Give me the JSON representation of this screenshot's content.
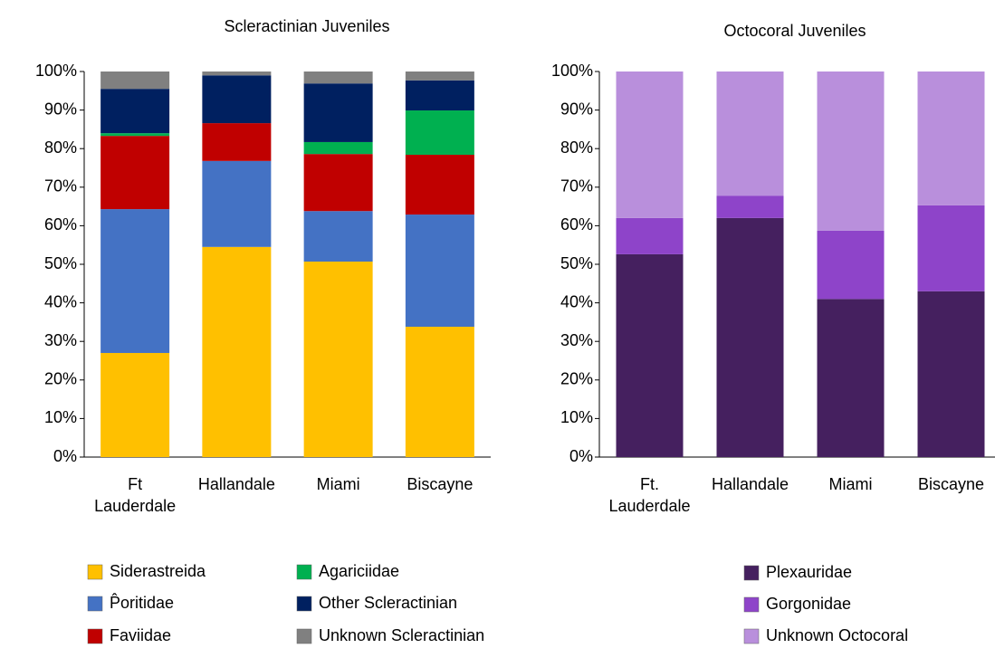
{
  "chart_data": [
    {
      "type": "bar",
      "stacked": true,
      "title": "Scleractinian Juveniles",
      "categories": [
        "Ft Lauderdale",
        "Hallandale",
        "Miami",
        "Biscayne"
      ],
      "series": [
        {
          "name": "Siderastreida",
          "color": "#ffc000",
          "values": [
            27,
            54.5,
            50.7,
            33.8
          ]
        },
        {
          "name": "P̂oritidae",
          "color": "#4472c4",
          "values": [
            37.3,
            22.3,
            13.1,
            29.1
          ]
        },
        {
          "name": "Faviidae",
          "color": "#c00000",
          "values": [
            19,
            9.8,
            14.8,
            15.5
          ]
        },
        {
          "name": "Agariciidae",
          "color": "#00b050",
          "values": [
            0.7,
            0,
            3.1,
            11.5
          ]
        },
        {
          "name": "Other Scleractinian",
          "color": "#002060",
          "values": [
            11.5,
            12.4,
            15.2,
            7.8
          ]
        },
        {
          "name": "Unknown Scleractinian",
          "color": "#808080",
          "values": [
            4.5,
            1,
            3.1,
            2.3
          ]
        }
      ],
      "ylim": [
        0,
        100
      ],
      "yticks": [
        {
          "value": 0,
          "label": "0%"
        },
        {
          "value": 10,
          "label": "10%"
        },
        {
          "value": 20,
          "label": "20%"
        },
        {
          "value": 30,
          "label": "30%"
        },
        {
          "value": 40,
          "label": "40%"
        },
        {
          "value": 50,
          "label": "50%"
        },
        {
          "value": 60,
          "label": "60%"
        },
        {
          "value": 70,
          "label": "70%"
        },
        {
          "value": 80,
          "label": "80%"
        },
        {
          "value": 90,
          "label": "90%"
        },
        {
          "value": 100,
          "label": "100%"
        }
      ],
      "grid": false
    },
    {
      "type": "bar",
      "stacked": true,
      "title": "Octocoral Juveniles",
      "categories": [
        "Ft. Lauderdale",
        "Hallandale",
        "Miami",
        "Biscayne"
      ],
      "series": [
        {
          "name": "Plexauridae",
          "color": "#45205f",
          "values": [
            52.6,
            62,
            41,
            43
          ]
        },
        {
          "name": "Gorgonidae",
          "color": "#8e44c9",
          "values": [
            9.4,
            5.8,
            17.7,
            22.3
          ]
        },
        {
          "name": "Unknown Octocoral",
          "color": "#b98fdc",
          "values": [
            38,
            32.2,
            41.3,
            34.7
          ]
        }
      ],
      "ylim": [
        0,
        100
      ],
      "yticks": [
        {
          "value": 0,
          "label": "0%"
        },
        {
          "value": 10,
          "label": "10%"
        },
        {
          "value": 20,
          "label": "20%"
        },
        {
          "value": 30,
          "label": "30%"
        },
        {
          "value": 40,
          "label": "40%"
        },
        {
          "value": 50,
          "label": "50%"
        },
        {
          "value": 60,
          "label": "60%"
        },
        {
          "value": 70,
          "label": "70%"
        },
        {
          "value": 80,
          "label": "80%"
        },
        {
          "value": 90,
          "label": "90%"
        },
        {
          "value": 100,
          "label": "100%"
        }
      ],
      "grid": false
    }
  ]
}
